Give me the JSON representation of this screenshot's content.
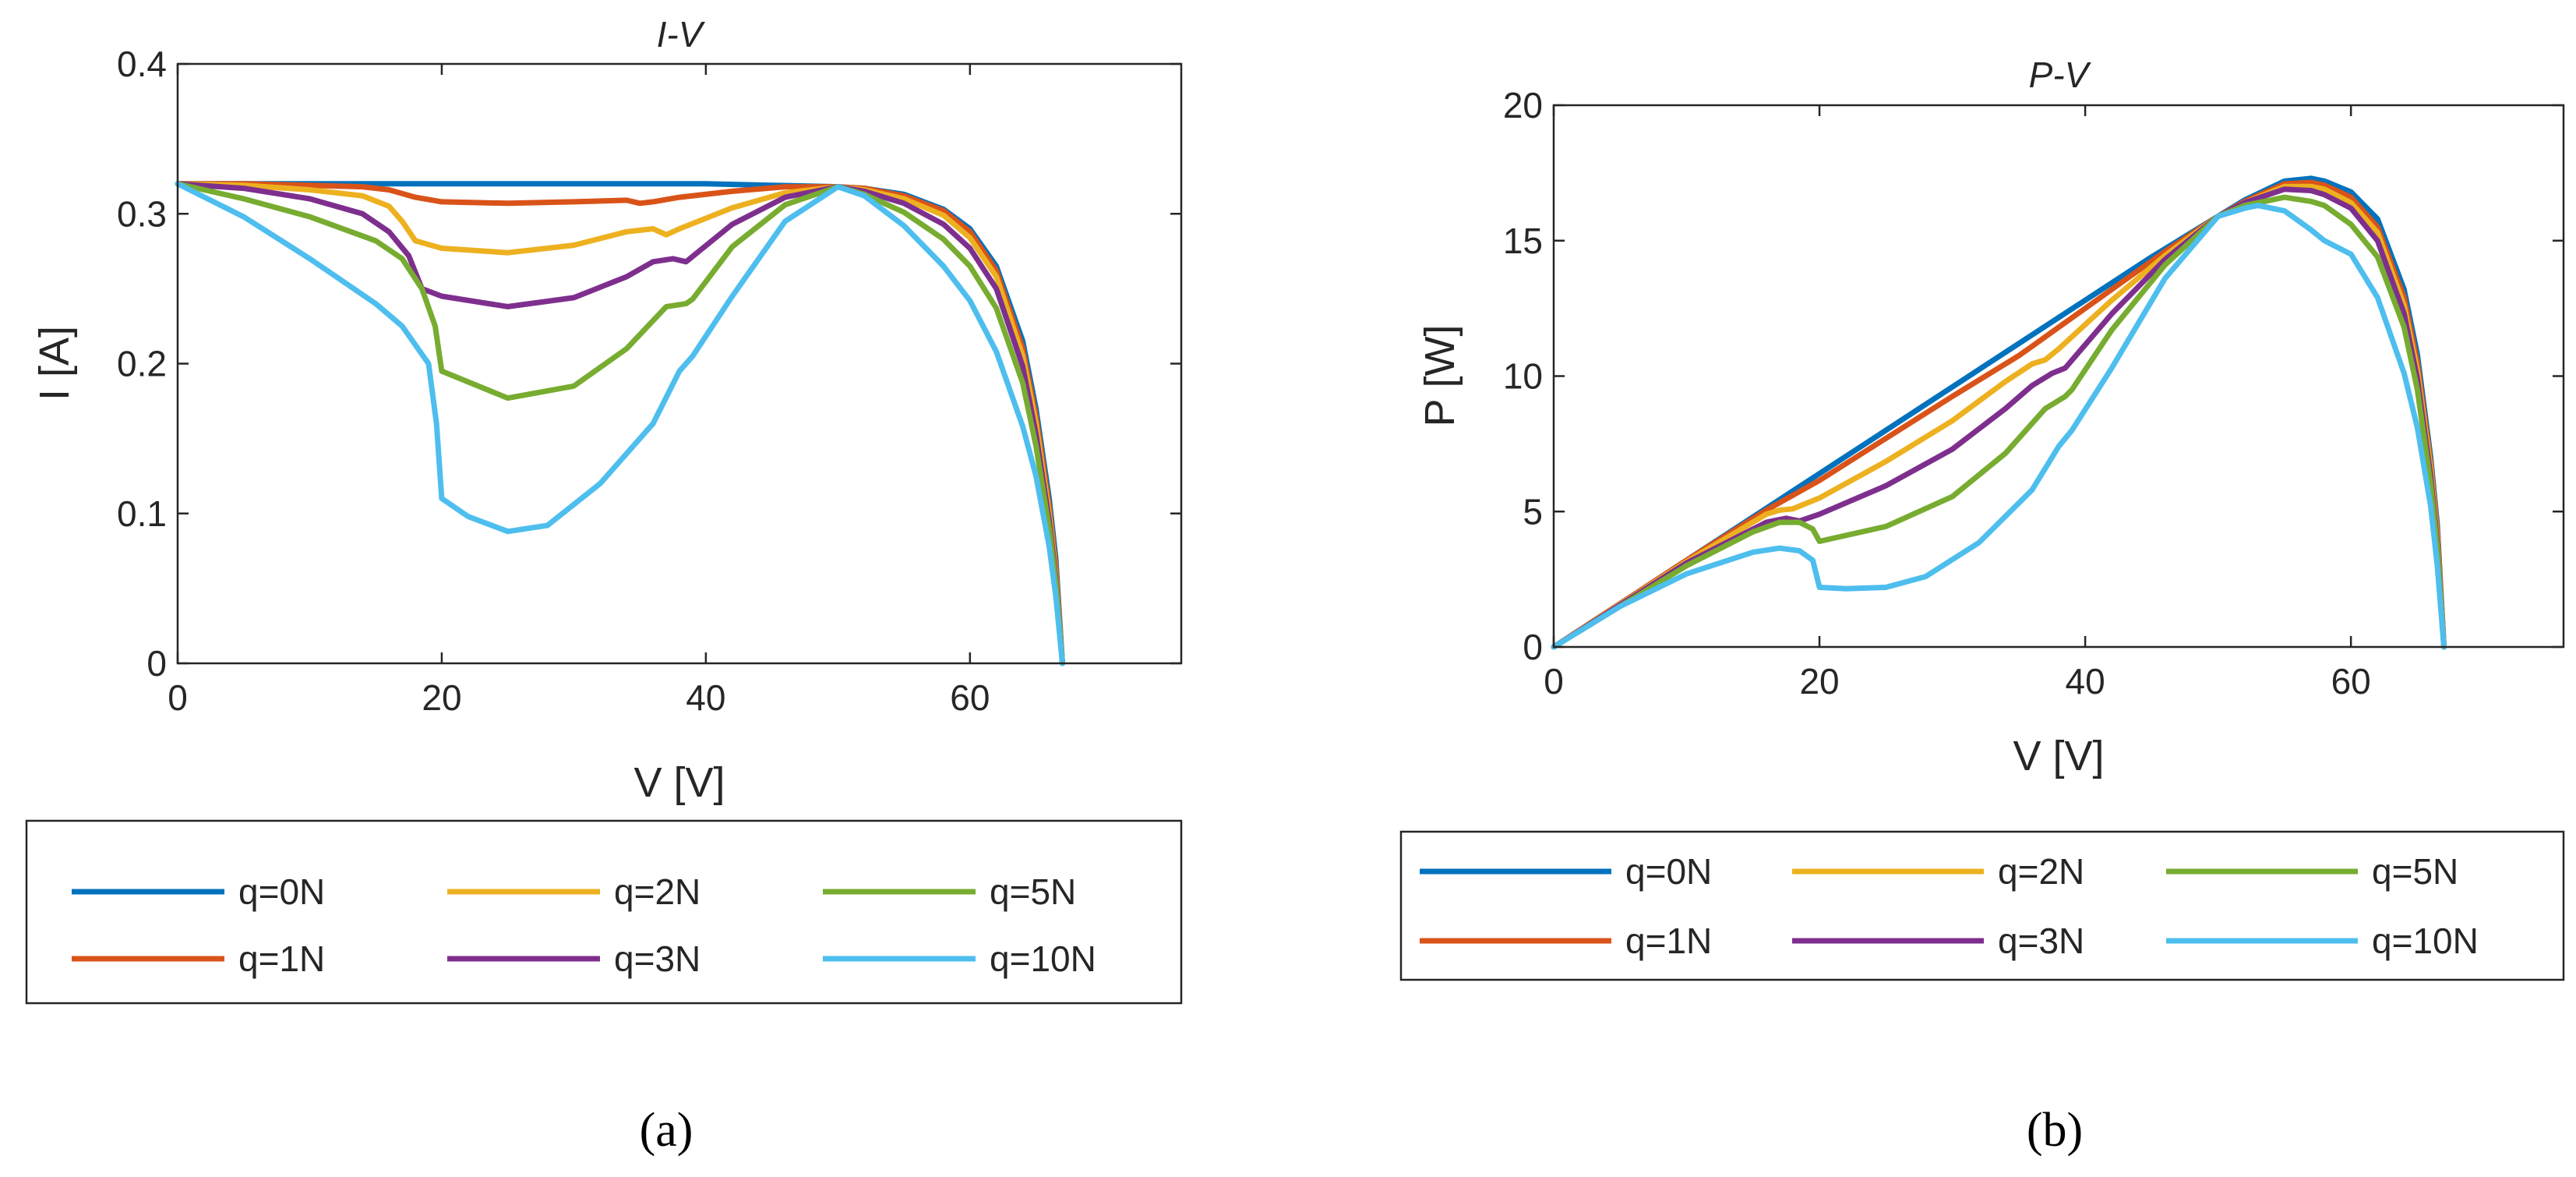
{
  "series_colors": [
    "#0072BD",
    "#D95319",
    "#EDB120",
    "#7E2F8E",
    "#77AC30",
    "#4DBEEE"
  ],
  "legend_labels": [
    "q=0N",
    "q=1N",
    "q=2N",
    "q=3N",
    "q=5N",
    "q=10N"
  ],
  "chart_data": [
    {
      "type": "line",
      "panel": "a",
      "caption": "(a)",
      "title": "I-V",
      "xlabel": "V  [V]",
      "ylabel": "I  [A]",
      "xlim": [
        0,
        76
      ],
      "ylim": [
        0,
        0.4
      ],
      "xticks": [
        0,
        20,
        40,
        60
      ],
      "yticks": [
        0,
        0.1,
        0.2,
        0.3,
        0.4
      ],
      "ytick_labels": [
        "0",
        "0.1",
        "0.2",
        "0.3",
        "0.4"
      ],
      "grid": false,
      "legend_position": "bottom",
      "series": [
        {
          "name": "q=0N",
          "x": [
            0,
            10,
            20,
            30,
            40,
            45,
            50,
            52,
            55,
            58,
            60,
            62,
            64,
            65,
            66,
            66.5,
            67
          ],
          "y": [
            0.32,
            0.32,
            0.32,
            0.32,
            0.32,
            0.319,
            0.318,
            0.317,
            0.313,
            0.303,
            0.29,
            0.265,
            0.215,
            0.17,
            0.11,
            0.07,
            0
          ]
        },
        {
          "name": "q=1N",
          "x": [
            0,
            5,
            10,
            14,
            16,
            18,
            20,
            25,
            30,
            34,
            35,
            36,
            38,
            42,
            46,
            50,
            52,
            55,
            58,
            60,
            62,
            64,
            65,
            66,
            66.5,
            67
          ],
          "y": [
            0.32,
            0.32,
            0.319,
            0.318,
            0.316,
            0.311,
            0.308,
            0.307,
            0.308,
            0.309,
            0.307,
            0.308,
            0.311,
            0.315,
            0.318,
            0.318,
            0.317,
            0.312,
            0.302,
            0.288,
            0.262,
            0.21,
            0.165,
            0.105,
            0.065,
            0
          ]
        },
        {
          "name": "q=2N",
          "x": [
            0,
            5,
            10,
            14,
            16,
            17,
            18,
            20,
            25,
            30,
            34,
            36,
            37,
            38,
            42,
            46,
            50,
            52,
            55,
            58,
            60,
            62,
            64,
            65,
            66,
            66.5,
            67
          ],
          "y": [
            0.32,
            0.319,
            0.316,
            0.312,
            0.305,
            0.295,
            0.282,
            0.277,
            0.274,
            0.279,
            0.288,
            0.29,
            0.286,
            0.29,
            0.304,
            0.314,
            0.318,
            0.316,
            0.31,
            0.299,
            0.284,
            0.258,
            0.205,
            0.16,
            0.1,
            0.06,
            0
          ]
        },
        {
          "name": "q=3N",
          "x": [
            0,
            5,
            10,
            14,
            16,
            17.5,
            18.5,
            20,
            25,
            30,
            34,
            36,
            37.5,
            38.5,
            42,
            46,
            50,
            52,
            55,
            58,
            60,
            62,
            64,
            65,
            66,
            66.5,
            67
          ],
          "y": [
            0.32,
            0.317,
            0.31,
            0.3,
            0.288,
            0.272,
            0.25,
            0.245,
            0.238,
            0.244,
            0.258,
            0.268,
            0.27,
            0.268,
            0.293,
            0.311,
            0.318,
            0.315,
            0.307,
            0.293,
            0.277,
            0.25,
            0.198,
            0.153,
            0.095,
            0.057,
            0
          ]
        },
        {
          "name": "q=5N",
          "x": [
            0,
            5,
            10,
            15,
            17,
            18.5,
            19.5,
            20,
            25,
            30,
            34,
            37,
            38.5,
            39,
            42,
            46,
            50,
            52,
            55,
            58,
            60,
            62,
            64,
            65,
            66,
            66.5,
            67
          ],
          "y": [
            0.32,
            0.31,
            0.298,
            0.282,
            0.27,
            0.25,
            0.225,
            0.195,
            0.177,
            0.185,
            0.21,
            0.238,
            0.24,
            0.243,
            0.278,
            0.306,
            0.318,
            0.313,
            0.301,
            0.283,
            0.265,
            0.237,
            0.187,
            0.145,
            0.09,
            0.054,
            0
          ]
        },
        {
          "name": "q=10N",
          "x": [
            0,
            5,
            10,
            15,
            17,
            19,
            19.6,
            20,
            22,
            25,
            28,
            32,
            36,
            38,
            39,
            42,
            46,
            50,
            52,
            55,
            58,
            60,
            62,
            64,
            65,
            66,
            66.5,
            67
          ],
          "y": [
            0.32,
            0.298,
            0.27,
            0.24,
            0.225,
            0.2,
            0.16,
            0.11,
            0.098,
            0.088,
            0.092,
            0.12,
            0.16,
            0.195,
            0.205,
            0.245,
            0.295,
            0.318,
            0.312,
            0.292,
            0.265,
            0.242,
            0.208,
            0.158,
            0.125,
            0.078,
            0.045,
            0
          ]
        }
      ]
    },
    {
      "type": "line",
      "panel": "b",
      "caption": "(b)",
      "title": "P-V",
      "xlabel": "V  [V]",
      "ylabel": "P  [W]",
      "xlim": [
        0,
        76
      ],
      "ylim": [
        0,
        20
      ],
      "xticks": [
        0,
        20,
        40,
        60
      ],
      "yticks": [
        0,
        5,
        10,
        15,
        20
      ],
      "ytick_labels": [
        "0",
        "5",
        "10",
        "15",
        "20"
      ],
      "grid": false,
      "legend_position": "bottom",
      "series": [
        {
          "name": "q=0N",
          "x": [
            0,
            10,
            20,
            30,
            40,
            45,
            50,
            52,
            55,
            57,
            58,
            60,
            62,
            64,
            65,
            66,
            66.5,
            67
          ],
          "y": [
            0,
            3.2,
            6.4,
            9.6,
            12.8,
            14.4,
            15.9,
            16.5,
            17.2,
            17.3,
            17.2,
            16.8,
            15.8,
            13.2,
            10.8,
            7.0,
            4.5,
            0
          ]
        },
        {
          "name": "q=1N",
          "x": [
            0,
            10,
            16,
            18,
            20,
            25,
            30,
            35,
            36,
            38,
            42,
            46,
            50,
            52,
            55,
            57,
            58,
            60,
            62,
            64,
            65,
            66,
            66.5,
            67
          ],
          "y": [
            0,
            3.2,
            5.05,
            5.6,
            6.15,
            7.7,
            9.25,
            10.75,
            11.1,
            11.8,
            13.2,
            14.6,
            15.9,
            16.45,
            17.1,
            17.15,
            17.05,
            16.6,
            15.5,
            12.9,
            10.5,
            6.8,
            4.3,
            0
          ]
        },
        {
          "name": "q=2N",
          "x": [
            0,
            10,
            16,
            17,
            18,
            20,
            25,
            30,
            34,
            36,
            37,
            38,
            42,
            46,
            50,
            52,
            55,
            57,
            58,
            60,
            62,
            64,
            65,
            66,
            66.5,
            67
          ],
          "y": [
            0,
            3.15,
            4.9,
            5.05,
            5.1,
            5.5,
            6.85,
            8.35,
            9.8,
            10.45,
            10.6,
            11.0,
            12.8,
            14.45,
            15.9,
            16.4,
            17.0,
            17.0,
            16.9,
            16.4,
            15.3,
            12.6,
            10.2,
            6.6,
            4.0,
            0
          ]
        },
        {
          "name": "q=3N",
          "x": [
            0,
            10,
            16,
            17.5,
            18.5,
            20,
            25,
            30,
            34,
            36,
            37.5,
            38.5,
            42,
            46,
            50,
            52,
            55,
            57,
            58,
            60,
            62,
            64,
            65,
            66,
            66.5,
            67
          ],
          "y": [
            0,
            3.1,
            4.6,
            4.75,
            4.65,
            4.9,
            5.95,
            7.3,
            8.8,
            9.65,
            10.1,
            10.3,
            12.3,
            14.3,
            15.9,
            16.4,
            16.9,
            16.85,
            16.7,
            16.2,
            15.0,
            12.3,
            9.9,
            6.3,
            3.8,
            0
          ]
        },
        {
          "name": "q=5N",
          "x": [
            0,
            10,
            15,
            17,
            18.5,
            19.5,
            20,
            25,
            30,
            34,
            37,
            38.5,
            39,
            42,
            46,
            50,
            52,
            55,
            57,
            58,
            60,
            62,
            64,
            65,
            66,
            66.5,
            67
          ],
          "y": [
            0,
            3.0,
            4.25,
            4.6,
            4.6,
            4.35,
            3.9,
            4.45,
            5.55,
            7.15,
            8.8,
            9.25,
            9.5,
            11.7,
            14.1,
            15.9,
            16.3,
            16.6,
            16.45,
            16.3,
            15.6,
            14.4,
            11.8,
            9.5,
            6.0,
            3.6,
            0
          ]
        },
        {
          "name": "q=10N",
          "x": [
            0,
            5,
            10,
            15,
            17,
            18.5,
            19.5,
            20,
            22,
            25,
            28,
            32,
            36,
            38,
            39,
            42,
            46,
            50,
            52,
            53,
            55,
            57,
            58,
            60,
            62,
            64,
            65,
            66,
            66.5,
            67
          ],
          "y": [
            0,
            1.5,
            2.7,
            3.5,
            3.65,
            3.55,
            3.2,
            2.2,
            2.15,
            2.2,
            2.6,
            3.85,
            5.8,
            7.4,
            8.0,
            10.3,
            13.6,
            15.9,
            16.2,
            16.3,
            16.1,
            15.4,
            15.0,
            14.5,
            12.9,
            10.1,
            8.1,
            5.2,
            3.0,
            0
          ]
        }
      ]
    }
  ]
}
